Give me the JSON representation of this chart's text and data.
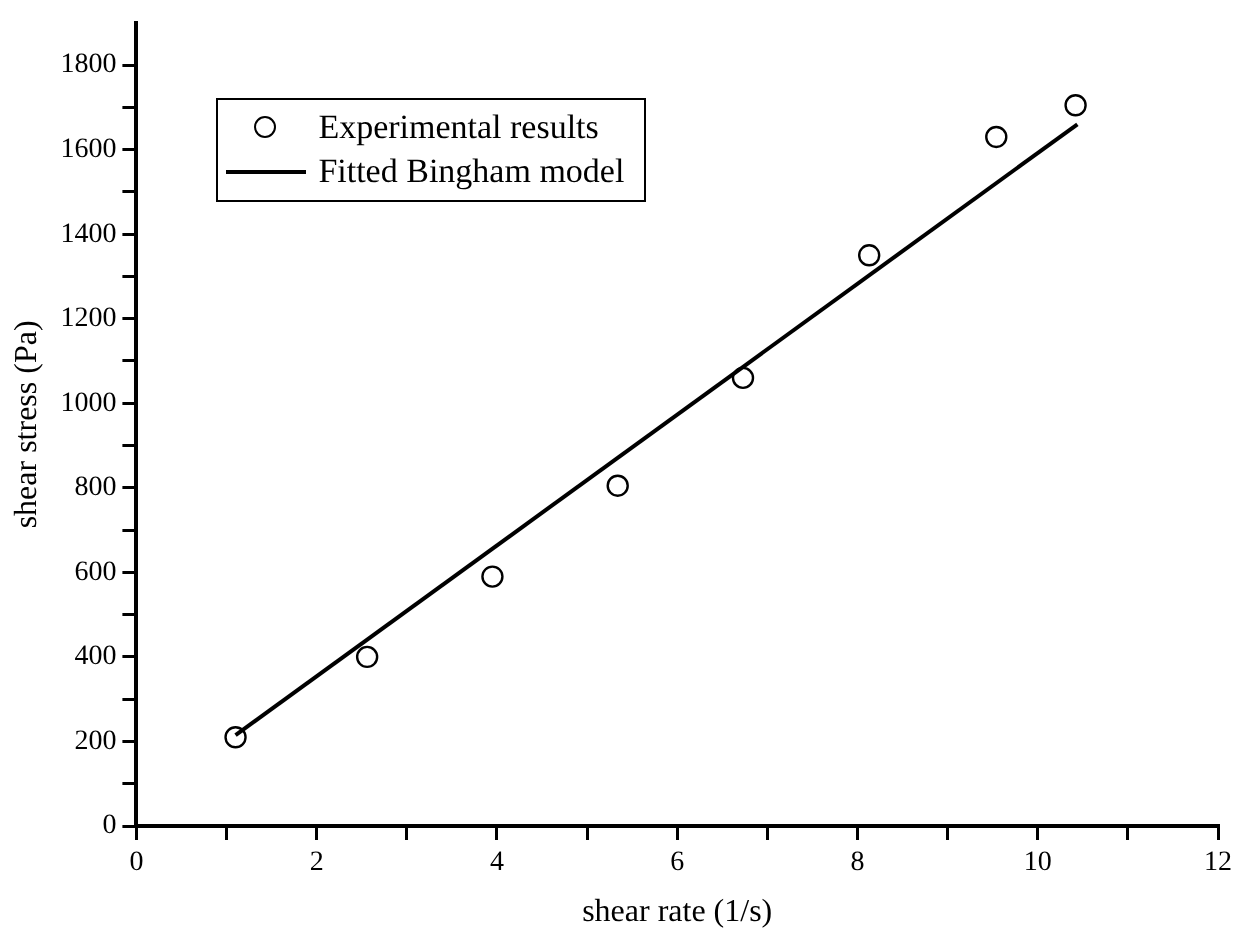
{
  "chart_data": {
    "type": "scatter",
    "xlabel": "shear rate (1/s)",
    "ylabel": "shear stress (Pa)",
    "xlim": [
      0,
      12
    ],
    "xticks": [
      0,
      {
        "value": 1,
        "label": null
      },
      2,
      {
        "value": 3,
        "label": null
      },
      4,
      {
        "value": 5,
        "label": null
      },
      6,
      {
        "value": 7,
        "label": null
      },
      8,
      {
        "value": 9,
        "label": null
      },
      10,
      {
        "value": 11,
        "label": null
      },
      12
    ],
    "ylim": [
      0,
      1900
    ],
    "yticks": [
      0,
      {
        "value": 100,
        "label": null
      },
      200,
      {
        "value": 300,
        "label": null
      },
      400,
      {
        "value": 500,
        "label": null
      },
      600,
      {
        "value": 700,
        "label": null
      },
      800,
      {
        "value": 900,
        "label": null
      },
      1000,
      {
        "value": 1100,
        "label": null
      },
      1200,
      {
        "value": 1300,
        "label": null
      },
      1400,
      {
        "value": 1500,
        "label": null
      },
      1600,
      {
        "value": 1700,
        "label": null
      },
      1800
    ],
    "legend": "top left",
    "grid": false,
    "series": [
      {
        "name": "Experimental results",
        "marker": "circle",
        "color": "#000000",
        "x": [
          1.1,
          2.56,
          3.95,
          5.34,
          6.73,
          8.13,
          9.54,
          10.42
        ],
        "values": [
          210,
          400,
          590,
          805,
          1060,
          1350,
          1630,
          1705
        ]
      },
      {
        "name": "Fitted Bingham model",
        "type": "line",
        "marker": "none",
        "line_style": "solid",
        "color": "#000000",
        "x": [
          1.1,
          10.44
        ],
        "values": [
          215,
          1660
        ]
      }
    ]
  }
}
